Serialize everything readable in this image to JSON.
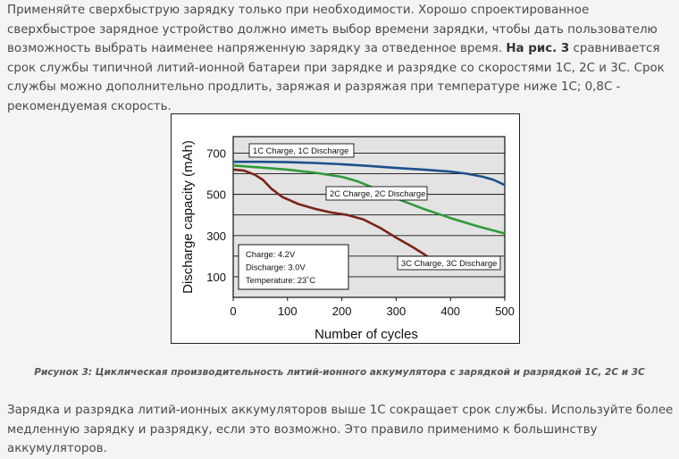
{
  "paragraph1": {
    "text_before": "Применяйте сверхбыструю зарядку только при необходимости. Хорошо спроектированное сверхбыстрое зарядное устройство должно иметь выбор времени зарядки, чтобы дать пользователю возможность выбрать наименее напряженную зарядку за отведенное время. ",
    "bold": "На рис. 3",
    "text_after": " сравнивается срок службы типичной литий-ионной батареи при зарядке и разрядке со скоростями 1C, 2C и 3C. Срок службы можно дополнительно продлить, заряжая и разряжая при температуре ниже 1C; 0,8C - рекомендуемая скорость."
  },
  "caption": "Рисунок 3: Циклическая производительность литий-ионного аккумулятора с зарядкой и разрядкой 1C, 2C и 3C",
  "paragraph2": "Зарядка и разрядка литий-ионных аккумуляторов выше 1C сокращает срок службы. Используйте более медленную зарядку и разрядку, если это возможно. Это правило применимо к большинству аккумуляторов.",
  "chart_data": {
    "type": "line",
    "xlabel": "Number of cycles",
    "ylabel": "Discharge capacity (mAh)",
    "xlim": [
      0,
      500
    ],
    "ylim": [
      0,
      780
    ],
    "xticks": [
      0,
      100,
      200,
      300,
      400,
      500
    ],
    "yticks": [
      100,
      300,
      500,
      700
    ],
    "grid": true,
    "series": [
      {
        "name": "1C Charge, 1C Discharge",
        "color": "#1d4f8c",
        "x": [
          0,
          50,
          100,
          150,
          200,
          250,
          300,
          350,
          400,
          430,
          460,
          480,
          500
        ],
        "y": [
          658,
          658,
          656,
          652,
          646,
          638,
          628,
          620,
          610,
          600,
          585,
          570,
          545
        ]
      },
      {
        "name": "2C Charge, 2C Discharge",
        "color": "#2e9a3a",
        "x": [
          0,
          50,
          100,
          150,
          200,
          230,
          260,
          300,
          350,
          400,
          450,
          500
        ],
        "y": [
          640,
          630,
          620,
          605,
          585,
          562,
          530,
          480,
          430,
          385,
          345,
          310
        ]
      },
      {
        "name": "3C Charge, 3C Discharge",
        "color": "#7a2418",
        "x": [
          0,
          20,
          40,
          55,
          70,
          90,
          120,
          150,
          180,
          210,
          240,
          270,
          300,
          330,
          350,
          362
        ],
        "y": [
          620,
          615,
          595,
          570,
          528,
          488,
          453,
          430,
          412,
          400,
          378,
          338,
          290,
          245,
          212,
          190
        ]
      }
    ],
    "annotation": [
      "Charge: 4.2V",
      "Discharge: 3.0V",
      "Temperature: 23˚C"
    ]
  }
}
